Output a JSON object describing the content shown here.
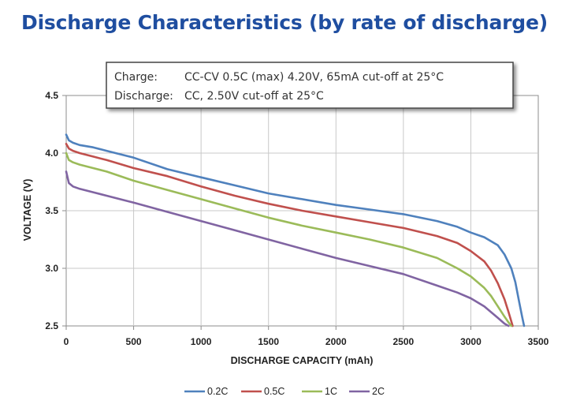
{
  "chart_data": {
    "type": "line",
    "title": "Discharge Characteristics (by rate of discharge)",
    "xlabel": "DISCHARGE CAPACITY (mAh)",
    "ylabel": "VOLTAGE (V)",
    "xlim": [
      0,
      3500
    ],
    "ylim": [
      2.5,
      4.5
    ],
    "xticks": [
      "0",
      "500",
      "1000",
      "1500",
      "2000",
      "2500",
      "3000",
      "3500"
    ],
    "yticks": [
      "2.5",
      "3.0",
      "3.5",
      "4.0",
      "4.5"
    ],
    "grid": true,
    "legend_position": "bottom",
    "annotation": {
      "charge_label": "Charge:",
      "charge_text": "CC-CV 0.5C (max) 4.20V, 65mA cut-off at 25°C",
      "discharge_label": "Discharge:",
      "discharge_text": "CC, 2.50V cut-off at 25°C"
    },
    "series": [
      {
        "name": "0.2C",
        "color": "#4f81bd",
        "x": [
          0,
          20,
          50,
          100,
          200,
          300,
          500,
          750,
          1000,
          1250,
          1500,
          1750,
          2000,
          2250,
          2500,
          2750,
          2900,
          3000,
          3100,
          3200,
          3250,
          3300,
          3330,
          3360,
          3380,
          3395
        ],
        "y": [
          4.16,
          4.11,
          4.09,
          4.07,
          4.05,
          4.02,
          3.96,
          3.86,
          3.79,
          3.72,
          3.65,
          3.6,
          3.55,
          3.51,
          3.47,
          3.41,
          3.36,
          3.31,
          3.27,
          3.2,
          3.12,
          3.0,
          2.88,
          2.7,
          2.58,
          2.5
        ]
      },
      {
        "name": "0.5C",
        "color": "#c0504d",
        "x": [
          0,
          20,
          50,
          100,
          200,
          300,
          500,
          750,
          1000,
          1250,
          1500,
          1750,
          2000,
          2250,
          2500,
          2750,
          2900,
          3000,
          3100,
          3150,
          3200,
          3250,
          3280,
          3300,
          3310
        ],
        "y": [
          4.08,
          4.04,
          4.02,
          4.0,
          3.97,
          3.94,
          3.87,
          3.8,
          3.71,
          3.63,
          3.56,
          3.5,
          3.45,
          3.4,
          3.35,
          3.28,
          3.22,
          3.15,
          3.06,
          2.98,
          2.87,
          2.73,
          2.62,
          2.54,
          2.5
        ]
      },
      {
        "name": "1C",
        "color": "#9bbb59",
        "x": [
          0,
          20,
          50,
          100,
          200,
          300,
          500,
          750,
          1000,
          1250,
          1500,
          1750,
          2000,
          2250,
          2500,
          2750,
          2900,
          3000,
          3100,
          3150,
          3200,
          3250,
          3280,
          3300
        ],
        "y": [
          4.0,
          3.94,
          3.92,
          3.9,
          3.87,
          3.84,
          3.76,
          3.68,
          3.6,
          3.52,
          3.44,
          3.37,
          3.31,
          3.25,
          3.18,
          3.09,
          3.0,
          2.93,
          2.83,
          2.76,
          2.67,
          2.58,
          2.53,
          2.5
        ]
      },
      {
        "name": "2C",
        "color": "#8064a2",
        "x": [
          0,
          20,
          50,
          100,
          200,
          300,
          500,
          750,
          1000,
          1250,
          1500,
          1750,
          2000,
          2250,
          2500,
          2750,
          2900,
          3000,
          3100,
          3150,
          3200,
          3250,
          3280
        ],
        "y": [
          3.84,
          3.74,
          3.71,
          3.69,
          3.66,
          3.63,
          3.57,
          3.49,
          3.41,
          3.33,
          3.25,
          3.17,
          3.09,
          3.02,
          2.95,
          2.85,
          2.79,
          2.74,
          2.67,
          2.62,
          2.57,
          2.52,
          2.5
        ]
      }
    ]
  }
}
